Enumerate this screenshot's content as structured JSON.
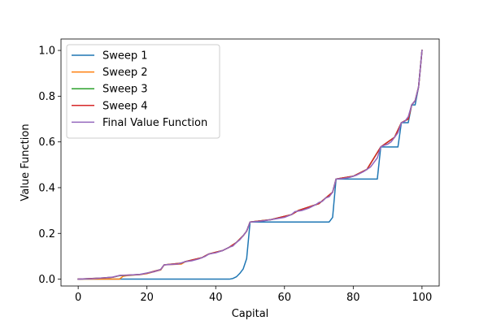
{
  "chart_data": {
    "type": "line",
    "xlabel": "Capital",
    "ylabel": "Value Function",
    "xlim": [
      -5,
      105
    ],
    "ylim": [
      -0.03,
      1.05
    ],
    "xticks": [
      0,
      20,
      40,
      60,
      80,
      100
    ],
    "yticks": [
      0.0,
      0.2,
      0.4,
      0.6,
      0.8,
      1.0
    ],
    "xtick_labels": [
      "0",
      "20",
      "40",
      "60",
      "80",
      "100"
    ],
    "ytick_labels": [
      "0.0",
      "0.2",
      "0.4",
      "0.6",
      "0.8",
      "1.0"
    ],
    "grid": false,
    "legend_position": "upper-left",
    "series": [
      {
        "name": "Sweep 1",
        "color": "#1f77b4",
        "points": [
          [
            0,
            0.0
          ],
          [
            44,
            0.0
          ],
          [
            45,
            0.003
          ],
          [
            46,
            0.01
          ],
          [
            47,
            0.025
          ],
          [
            48,
            0.045
          ],
          [
            49,
            0.09
          ],
          [
            50,
            0.25
          ],
          [
            73,
            0.25
          ],
          [
            74,
            0.27
          ],
          [
            75,
            0.4375
          ],
          [
            87,
            0.4375
          ],
          [
            88,
            0.578
          ],
          [
            93,
            0.578
          ],
          [
            94,
            0.684
          ],
          [
            96,
            0.684
          ],
          [
            97,
            0.762
          ],
          [
            98,
            0.762
          ],
          [
            99,
            0.84
          ],
          [
            100,
            1.0
          ]
        ]
      },
      {
        "name": "Sweep 2",
        "color": "#ff7f0e",
        "points": [
          [
            0,
            0.0
          ],
          [
            12,
            0.0
          ],
          [
            13,
            0.012
          ],
          [
            14,
            0.015
          ],
          [
            18,
            0.02
          ],
          [
            20,
            0.024
          ],
          [
            24,
            0.04
          ],
          [
            25,
            0.0625
          ],
          [
            30,
            0.066
          ],
          [
            31,
            0.075
          ],
          [
            36,
            0.094
          ],
          [
            38,
            0.11
          ],
          [
            42,
            0.125
          ],
          [
            44,
            0.14
          ],
          [
            46,
            0.16
          ],
          [
            48,
            0.19
          ],
          [
            49,
            0.21
          ],
          [
            50,
            0.25
          ],
          [
            56,
            0.26
          ],
          [
            62,
            0.282
          ],
          [
            64,
            0.3
          ],
          [
            70,
            0.33
          ],
          [
            74,
            0.38
          ],
          [
            75,
            0.4375
          ],
          [
            80,
            0.45
          ],
          [
            84,
            0.48
          ],
          [
            88,
            0.578
          ],
          [
            92,
            0.62
          ],
          [
            94,
            0.684
          ],
          [
            96,
            0.7
          ],
          [
            97,
            0.762
          ],
          [
            98,
            0.78
          ],
          [
            99,
            0.84
          ],
          [
            100,
            1.0
          ]
        ]
      },
      {
        "name": "Sweep 3",
        "color": "#2ca02c",
        "points": [
          [
            0,
            0.0
          ],
          [
            6,
            0.004
          ],
          [
            10,
            0.008
          ],
          [
            12,
            0.015
          ],
          [
            18,
            0.02
          ],
          [
            20,
            0.026
          ],
          [
            24,
            0.042
          ],
          [
            25,
            0.0625
          ],
          [
            30,
            0.07
          ],
          [
            31,
            0.076
          ],
          [
            36,
            0.094
          ],
          [
            38,
            0.11
          ],
          [
            42,
            0.125
          ],
          [
            44,
            0.14
          ],
          [
            46,
            0.16
          ],
          [
            48,
            0.19
          ],
          [
            49,
            0.21
          ],
          [
            50,
            0.25
          ],
          [
            56,
            0.26
          ],
          [
            62,
            0.282
          ],
          [
            64,
            0.3
          ],
          [
            70,
            0.33
          ],
          [
            74,
            0.38
          ],
          [
            75,
            0.4375
          ],
          [
            80,
            0.45
          ],
          [
            84,
            0.48
          ],
          [
            88,
            0.578
          ],
          [
            92,
            0.62
          ],
          [
            94,
            0.684
          ],
          [
            96,
            0.7
          ],
          [
            97,
            0.762
          ],
          [
            98,
            0.78
          ],
          [
            99,
            0.84
          ],
          [
            100,
            1.0
          ]
        ]
      },
      {
        "name": "Sweep 4",
        "color": "#d62728",
        "points": [
          [
            0,
            0.0
          ],
          [
            6,
            0.004
          ],
          [
            10,
            0.008
          ],
          [
            12,
            0.016
          ],
          [
            18,
            0.02
          ],
          [
            20,
            0.026
          ],
          [
            24,
            0.042
          ],
          [
            25,
            0.0625
          ],
          [
            30,
            0.07
          ],
          [
            31,
            0.076
          ],
          [
            36,
            0.094
          ],
          [
            38,
            0.11
          ],
          [
            42,
            0.125
          ],
          [
            44,
            0.14
          ],
          [
            46,
            0.16
          ],
          [
            48,
            0.19
          ],
          [
            49,
            0.21
          ],
          [
            50,
            0.25
          ],
          [
            56,
            0.26
          ],
          [
            62,
            0.282
          ],
          [
            64,
            0.3
          ],
          [
            70,
            0.33
          ],
          [
            74,
            0.38
          ],
          [
            75,
            0.4375
          ],
          [
            80,
            0.45
          ],
          [
            84,
            0.48
          ],
          [
            88,
            0.578
          ],
          [
            92,
            0.62
          ],
          [
            94,
            0.684
          ],
          [
            96,
            0.7
          ],
          [
            97,
            0.762
          ],
          [
            98,
            0.78
          ],
          [
            99,
            0.84
          ],
          [
            100,
            1.0
          ]
        ]
      },
      {
        "name": "Final Value Function",
        "color": "#9467bd",
        "points": [
          [
            0,
            0.0
          ],
          [
            2,
            0.001
          ],
          [
            4,
            0.002
          ],
          [
            6,
            0.004
          ],
          [
            8,
            0.006
          ],
          [
            10,
            0.009
          ],
          [
            12,
            0.016
          ],
          [
            14,
            0.017
          ],
          [
            16,
            0.019
          ],
          [
            18,
            0.021
          ],
          [
            20,
            0.027
          ],
          [
            22,
            0.032
          ],
          [
            24,
            0.042
          ],
          [
            25,
            0.0625
          ],
          [
            27,
            0.064
          ],
          [
            29,
            0.066
          ],
          [
            31,
            0.076
          ],
          [
            33,
            0.08
          ],
          [
            35,
            0.088
          ],
          [
            37,
            0.1
          ],
          [
            38,
            0.11
          ],
          [
            40,
            0.115
          ],
          [
            42,
            0.125
          ],
          [
            44,
            0.14
          ],
          [
            45,
            0.145
          ],
          [
            46,
            0.16
          ],
          [
            47,
            0.172
          ],
          [
            48,
            0.19
          ],
          [
            49,
            0.21
          ],
          [
            50,
            0.25
          ],
          [
            52,
            0.252
          ],
          [
            54,
            0.255
          ],
          [
            56,
            0.26
          ],
          [
            58,
            0.265
          ],
          [
            60,
            0.27
          ],
          [
            62,
            0.282
          ],
          [
            63,
            0.295
          ],
          [
            65,
            0.3
          ],
          [
            67,
            0.31
          ],
          [
            69,
            0.325
          ],
          [
            70,
            0.335
          ],
          [
            71,
            0.34
          ],
          [
            72,
            0.355
          ],
          [
            73,
            0.36
          ],
          [
            74,
            0.38
          ],
          [
            75,
            0.4375
          ],
          [
            77,
            0.44
          ],
          [
            79,
            0.445
          ],
          [
            81,
            0.455
          ],
          [
            83,
            0.47
          ],
          [
            85,
            0.49
          ],
          [
            86,
            0.51
          ],
          [
            87,
            0.53
          ],
          [
            88,
            0.578
          ],
          [
            89,
            0.585
          ],
          [
            90,
            0.59
          ],
          [
            91,
            0.6
          ],
          [
            92,
            0.62
          ],
          [
            93,
            0.64
          ],
          [
            94,
            0.684
          ],
          [
            95,
            0.69
          ],
          [
            96,
            0.71
          ],
          [
            97,
            0.762
          ],
          [
            98,
            0.78
          ],
          [
            99,
            0.84
          ],
          [
            100,
            1.0
          ]
        ]
      }
    ]
  }
}
